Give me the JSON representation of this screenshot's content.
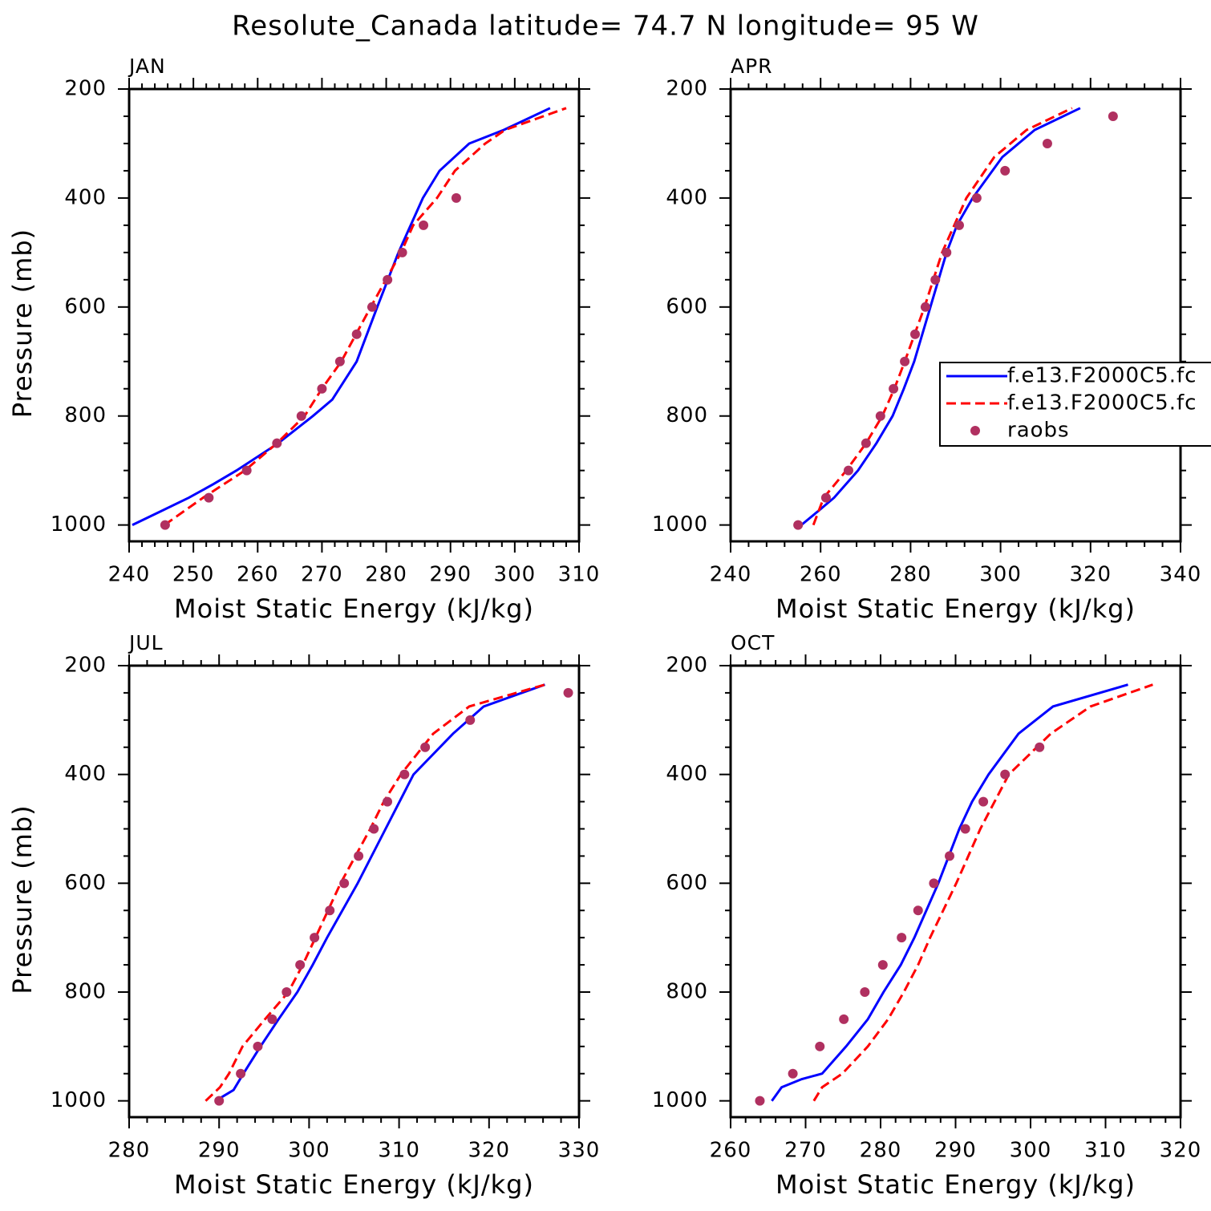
{
  "title": "Resolute_Canada  latitude= 74.7 N longitude= 95 W",
  "chart_data": [
    {
      "type": "profile",
      "title": "JAN",
      "xlabel": "Moist Static Energy (kJ/kg)",
      "ylabel": "Pressure (mb)",
      "xlim": [
        240,
        310
      ],
      "xticks": [
        240,
        250,
        260,
        270,
        280,
        290,
        300,
        310
      ],
      "ylim": [
        1030,
        200
      ],
      "yticks": [
        200,
        400,
        600,
        800,
        1000
      ],
      "series": [
        {
          "color": "#0000ff",
          "style": "solid",
          "x": [
            240.5,
            244.9,
            249.3,
            253.1,
            256.7,
            263.2,
            268.6,
            271.6,
            275.4,
            278.6,
            281.9,
            285.7,
            288.3,
            292.9,
            298.3,
            305.5
          ],
          "values": [
            1000,
            975,
            950,
            925,
            900,
            850,
            800,
            770,
            700,
            600,
            500,
            400,
            350,
            300,
            275,
            235
          ]
        },
        {
          "color": "#ff0000",
          "style": "dashed",
          "x": [
            245.5,
            251.5,
            258,
            263,
            267.3,
            270,
            273,
            277.6,
            282.3,
            284.2,
            287.9,
            290.7,
            295.4,
            298.5,
            308
          ],
          "values": [
            1000,
            950,
            900,
            850,
            800,
            750,
            700,
            600,
            500,
            450,
            400,
            350,
            300,
            275,
            235
          ]
        },
        {
          "color": "#b03060",
          "style": "dots",
          "x": [
            245.6,
            252.4,
            258.3,
            263,
            266.8,
            270,
            272.8,
            275.4,
            277.8,
            280.2,
            282.5,
            285.8,
            290.9
          ],
          "values": [
            1000,
            950,
            900,
            850,
            800,
            750,
            700,
            650,
            600,
            550,
            500,
            450,
            400
          ]
        }
      ]
    },
    {
      "type": "profile",
      "title": "APR",
      "xlabel": "Moist Static Energy (kJ/kg)",
      "xlim": [
        240,
        340
      ],
      "xticks": [
        240,
        260,
        280,
        300,
        320,
        340
      ],
      "ylim": [
        1030,
        200
      ],
      "yticks": [
        200,
        400,
        600,
        800,
        1000
      ],
      "legend": "right",
      "series": [
        {
          "name": "f.e13.F2000C5.fc",
          "color": "#0000ff",
          "style": "solid",
          "x": [
            255,
            259.4,
            263,
            268.3,
            272.4,
            276,
            278.5,
            280.8,
            284.4,
            288,
            290.3,
            293.8,
            300.4,
            307.6,
            317.7
          ],
          "values": [
            1005,
            975,
            950,
            900,
            850,
            800,
            750,
            700,
            600,
            500,
            450,
            400,
            325,
            275,
            235
          ]
        },
        {
          "name": "f.e13.F2000C5.fc",
          "color": "#ff0000",
          "style": "dashed",
          "x": [
            258.4,
            260.7,
            265.7,
            270.1,
            273.7,
            276.4,
            278.7,
            283.1,
            287,
            292.4,
            298.6,
            305.8,
            315.9
          ],
          "values": [
            1000,
            950,
            900,
            850,
            800,
            750,
            700,
            600,
            500,
            400,
            325,
            275,
            235
          ]
        },
        {
          "name": "raobs",
          "color": "#b03060",
          "style": "dots",
          "x": [
            255,
            261.2,
            266.2,
            270.1,
            273.3,
            276.2,
            278.7,
            281,
            283.3,
            285.5,
            288,
            290.8,
            294.7,
            301,
            310.4,
            325
          ],
          "values": [
            1000,
            950,
            900,
            850,
            800,
            750,
            700,
            650,
            600,
            550,
            500,
            450,
            400,
            350,
            300,
            250
          ]
        }
      ]
    },
    {
      "type": "profile",
      "title": "JUL",
      "xlabel": "Moist Static Energy (kJ/kg)",
      "ylabel": "Pressure (mb)",
      "xlim": [
        280,
        330
      ],
      "xticks": [
        280,
        290,
        300,
        310,
        320,
        330
      ],
      "ylim": [
        1030,
        200
      ],
      "yticks": [
        200,
        400,
        600,
        800,
        1000
      ],
      "series": [
        {
          "color": "#0000ff",
          "style": "solid",
          "x": [
            289.6,
            291.6,
            292.7,
            294.6,
            296.6,
            298.7,
            300.4,
            302,
            305.4,
            308.5,
            311.6,
            316,
            319.4,
            326.2
          ],
          "values": [
            1000,
            980,
            950,
            900,
            850,
            800,
            750,
            700,
            600,
            500,
            400,
            325,
            275,
            235
          ]
        },
        {
          "color": "#ff0000",
          "style": "dashed",
          "x": [
            288.5,
            290.1,
            291.1,
            292.6,
            295.1,
            297.7,
            299.3,
            300.7,
            303.5,
            306.8,
            308.3,
            310.2,
            313.8,
            317.8,
            326.2
          ],
          "values": [
            1000,
            975,
            950,
            900,
            850,
            800,
            750,
            700,
            600,
            500,
            450,
            400,
            325,
            275,
            235
          ]
        },
        {
          "color": "#b03060",
          "style": "dots",
          "x": [
            290,
            292.4,
            294.3,
            295.9,
            297.5,
            299,
            300.6,
            302.3,
            303.9,
            305.5,
            307.2,
            308.7,
            310.6,
            312.9,
            317.9,
            328.8
          ],
          "values": [
            1000,
            950,
            900,
            850,
            800,
            750,
            700,
            650,
            600,
            550,
            500,
            450,
            400,
            350,
            300,
            250
          ]
        }
      ]
    },
    {
      "type": "profile",
      "title": "OCT",
      "xlabel": "Moist Static Energy (kJ/kg)",
      "xlim": [
        260,
        320
      ],
      "xticks": [
        260,
        270,
        280,
        290,
        300,
        310,
        320
      ],
      "ylim": [
        1030,
        200
      ],
      "yticks": [
        200,
        400,
        600,
        800,
        1000
      ],
      "series": [
        {
          "color": "#0000ff",
          "style": "solid",
          "x": [
            265.5,
            266.8,
            269.5,
            272.2,
            275.4,
            278.3,
            280.4,
            282.7,
            284.5,
            287.7,
            290.5,
            292.2,
            294.4,
            298.4,
            303,
            313
          ],
          "values": [
            1000,
            975,
            960,
            950,
            900,
            850,
            800,
            750,
            700,
            600,
            500,
            450,
            400,
            325,
            275,
            235
          ]
        },
        {
          "color": "#ff0000",
          "style": "dashed",
          "x": [
            271.1,
            272.2,
            274.9,
            278.3,
            281,
            283.1,
            285,
            286.6,
            290.1,
            293.3,
            297.1,
            302.7,
            308,
            316.3
          ],
          "values": [
            1000,
            975,
            950,
            900,
            850,
            800,
            750,
            700,
            600,
            500,
            400,
            325,
            275,
            235
          ]
        },
        {
          "color": "#b03060",
          "style": "dots",
          "x": [
            263.9,
            268.3,
            271.9,
            275.1,
            277.9,
            280.3,
            282.8,
            285,
            287.1,
            289.2,
            291.3,
            293.7,
            296.6,
            301.2
          ],
          "values": [
            1000,
            950,
            900,
            850,
            800,
            750,
            700,
            650,
            600,
            550,
            500,
            450,
            400,
            350
          ]
        }
      ]
    }
  ]
}
